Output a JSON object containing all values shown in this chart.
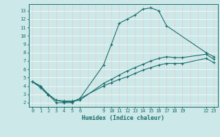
{
  "xlabel": "Humidex (Indice chaleur)",
  "bg_color": "#cce8e8",
  "grid_color_v": "#e8c8c8",
  "grid_color_h": "#ffffff",
  "line_color": "#1a6b6b",
  "xlim": [
    -0.5,
    23.5
  ],
  "ylim": [
    1.5,
    13.8
  ],
  "xticks": [
    0,
    1,
    2,
    3,
    4,
    5,
    6,
    9,
    10,
    11,
    12,
    13,
    14,
    15,
    16,
    17,
    18,
    19,
    22,
    23
  ],
  "yticks": [
    2,
    3,
    4,
    5,
    6,
    7,
    8,
    9,
    10,
    11,
    12,
    13
  ],
  "line1_x": [
    0,
    1,
    2,
    3,
    4,
    5,
    6,
    9,
    10,
    11,
    12,
    13,
    14,
    15,
    16,
    17,
    22,
    23
  ],
  "line1_y": [
    4.5,
    4.0,
    3.0,
    2.0,
    2.0,
    2.0,
    2.5,
    6.5,
    9.0,
    11.5,
    12.0,
    12.5,
    13.2,
    13.35,
    13.0,
    11.2,
    8.0,
    7.5
  ],
  "line2_x": [
    0,
    1,
    2,
    3,
    4,
    5,
    6,
    9,
    10,
    11,
    12,
    13,
    14,
    15,
    16,
    17,
    18,
    19,
    22,
    23
  ],
  "line2_y": [
    4.5,
    4.0,
    3.0,
    2.3,
    2.2,
    2.2,
    2.3,
    4.3,
    4.8,
    5.3,
    5.8,
    6.2,
    6.6,
    7.0,
    7.3,
    7.5,
    7.4,
    7.4,
    7.8,
    7.2
  ],
  "line3_x": [
    0,
    1,
    2,
    3,
    4,
    5,
    6,
    9,
    10,
    11,
    12,
    13,
    14,
    15,
    16,
    17,
    18,
    19,
    22,
    23
  ],
  "line3_y": [
    4.5,
    3.8,
    2.9,
    2.3,
    2.1,
    2.1,
    2.5,
    4.0,
    4.4,
    4.8,
    5.1,
    5.5,
    5.9,
    6.2,
    6.5,
    6.7,
    6.7,
    6.7,
    7.3,
    6.8
  ]
}
